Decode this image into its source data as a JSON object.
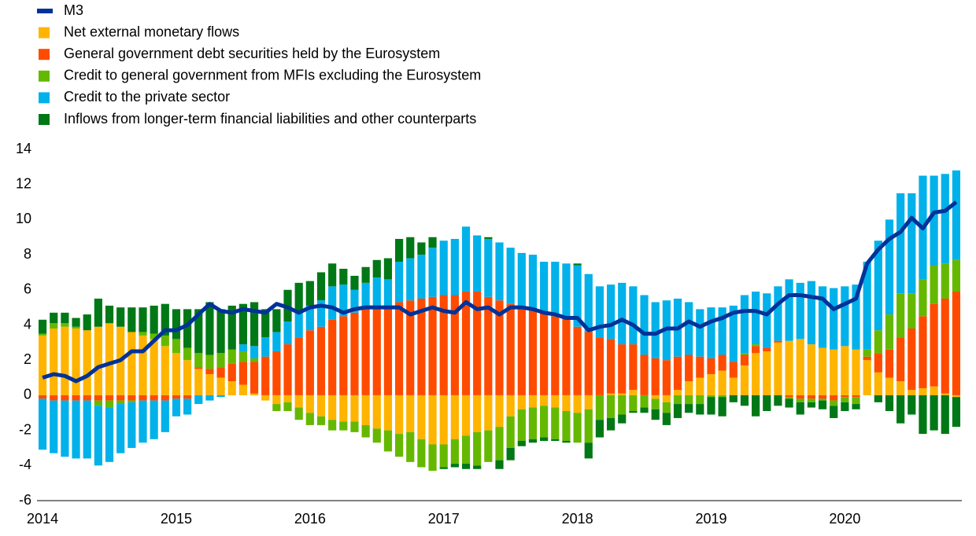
{
  "chart_data": {
    "type": "bar",
    "stacked": true,
    "categories": [
      "2014",
      null,
      null,
      null,
      null,
      null,
      null,
      null,
      null,
      null,
      null,
      null,
      "2015",
      null,
      null,
      null,
      null,
      null,
      null,
      null,
      null,
      null,
      null,
      null,
      "2016",
      null,
      null,
      null,
      null,
      null,
      null,
      null,
      null,
      null,
      null,
      null,
      "2017",
      null,
      null,
      null,
      null,
      null,
      null,
      null,
      null,
      null,
      null,
      null,
      "2018",
      null,
      null,
      null,
      null,
      null,
      null,
      null,
      null,
      null,
      null,
      null,
      "2019",
      null,
      null,
      null,
      null,
      null,
      null,
      null,
      null,
      null,
      null,
      null,
      "2020",
      null,
      null,
      null,
      null,
      null,
      null,
      null,
      null,
      null,
      null
    ],
    "ylim": [
      -6,
      14
    ],
    "yticks": [
      -6,
      -4,
      -2,
      0,
      2,
      4,
      6,
      8,
      10,
      12,
      14
    ],
    "grid": false,
    "legend": "top-left",
    "series": [
      {
        "name": "M3",
        "type": "line",
        "color": "#003299",
        "values": [
          1.0,
          1.2,
          1.1,
          0.8,
          1.1,
          1.6,
          1.8,
          2.0,
          2.5,
          2.5,
          3.1,
          3.7,
          3.7,
          4.0,
          4.6,
          5.2,
          4.8,
          4.7,
          4.9,
          4.8,
          4.7,
          5.2,
          5.0,
          4.7,
          5.0,
          5.1,
          5.0,
          4.7,
          4.9,
          5.0,
          5.0,
          5.0,
          5.0,
          4.6,
          4.8,
          5.0,
          4.8,
          4.7,
          5.3,
          4.9,
          5.0,
          4.6,
          5.0,
          5.0,
          4.9,
          4.7,
          4.6,
          4.4,
          4.4,
          3.7,
          3.9,
          4.0,
          4.3,
          4.0,
          3.5,
          3.5,
          3.8,
          3.8,
          4.2,
          3.9,
          4.2,
          4.4,
          4.7,
          4.8,
          4.8,
          4.6,
          5.2,
          5.7,
          5.7,
          5.6,
          5.5,
          4.9,
          5.2,
          5.5,
          7.5,
          8.3,
          8.9,
          9.3,
          10.1,
          9.5,
          10.4,
          10.5,
          11.0
        ]
      },
      {
        "name": "Net external monetary flows",
        "color": "#ffb400",
        "values": [
          3.4,
          3.8,
          3.9,
          3.8,
          3.7,
          3.9,
          4.1,
          3.9,
          3.6,
          3.4,
          3.2,
          2.8,
          2.4,
          2.0,
          1.5,
          1.2,
          1.0,
          0.8,
          0.6,
          0.1,
          -0.3,
          -0.5,
          -0.4,
          -0.7,
          -1.0,
          -1.2,
          -1.4,
          -1.5,
          -1.5,
          -1.7,
          -1.9,
          -2.0,
          -2.2,
          -2.1,
          -2.5,
          -2.8,
          -2.8,
          -2.5,
          -2.3,
          -2.1,
          -2.0,
          -1.8,
          -1.2,
          -0.8,
          -0.7,
          -0.6,
          -0.7,
          -0.9,
          -1.0,
          -0.8,
          0.0,
          0.1,
          0.1,
          0.3,
          0.0,
          -0.2,
          -0.4,
          0.3,
          0.8,
          1.0,
          1.2,
          1.4,
          1.0,
          1.7,
          2.4,
          2.5,
          3.0,
          3.1,
          3.2,
          2.9,
          2.7,
          2.6,
          2.8,
          2.6,
          2.0,
          1.3,
          1.0,
          0.8,
          0.3,
          0.4,
          0.5,
          0.1,
          -0.1
        ]
      },
      {
        "name": "General government debt securities held by the Eurosystem",
        "color": "#ff4b00",
        "values": [
          -0.2,
          -0.3,
          -0.3,
          -0.3,
          -0.3,
          -0.3,
          -0.3,
          -0.3,
          -0.3,
          -0.3,
          -0.3,
          -0.3,
          -0.2,
          -0.2,
          0.1,
          0.3,
          0.6,
          1.0,
          1.3,
          1.8,
          2.2,
          2.5,
          2.9,
          3.3,
          3.7,
          3.9,
          4.3,
          4.5,
          4.7,
          4.9,
          5.0,
          5.1,
          5.3,
          5.4,
          5.5,
          5.6,
          5.7,
          5.7,
          5.9,
          5.9,
          5.6,
          5.4,
          5.2,
          5.1,
          4.9,
          4.7,
          4.5,
          4.4,
          3.9,
          3.6,
          3.3,
          3.1,
          2.8,
          2.6,
          2.3,
          2.1,
          2.0,
          1.9,
          1.5,
          1.2,
          0.9,
          0.9,
          0.9,
          0.6,
          0.4,
          0.2,
          0.1,
          -0.1,
          -0.2,
          -0.2,
          -0.2,
          -0.3,
          -0.1,
          -0.1,
          0.2,
          1.1,
          1.6,
          2.5,
          3.5,
          4.1,
          4.7,
          5.4,
          5.9
        ]
      },
      {
        "name": "Credit to general government from MFIs excluding the Eurosystem",
        "color": "#65b800",
        "values": [
          0.1,
          0.3,
          0.2,
          0.1,
          0.0,
          -0.3,
          -0.4,
          -0.2,
          -0.1,
          0.2,
          0.3,
          0.6,
          0.8,
          0.7,
          0.8,
          0.8,
          0.8,
          0.8,
          0.6,
          0.2,
          0.0,
          -0.4,
          -0.5,
          -0.7,
          -0.7,
          -0.5,
          -0.6,
          -0.5,
          -0.6,
          -0.7,
          -0.8,
          -1.2,
          -1.3,
          -1.7,
          -1.6,
          -1.5,
          -1.3,
          -1.4,
          -1.6,
          -1.9,
          -1.8,
          -1.9,
          -1.8,
          -1.8,
          -1.8,
          -1.8,
          -1.8,
          -1.7,
          -1.7,
          -1.9,
          -1.4,
          -1.3,
          -1.1,
          -0.9,
          -0.7,
          -0.6,
          -0.6,
          -0.5,
          -0.5,
          -0.5,
          -0.1,
          -0.1,
          0.0,
          0.1,
          0.1,
          0.0,
          0.0,
          -0.1,
          -0.2,
          -0.2,
          -0.1,
          -0.3,
          -0.3,
          -0.4,
          0.4,
          1.3,
          2.0,
          2.5,
          2.0,
          2.1,
          2.2,
          2.0,
          1.8
        ]
      },
      {
        "name": "Credit to the private sector",
        "color": "#00b1ea",
        "values": [
          -2.9,
          -3.0,
          -3.2,
          -3.3,
          -3.3,
          -3.4,
          -3.1,
          -2.8,
          -2.6,
          -2.4,
          -2.2,
          -1.8,
          -1.0,
          -0.9,
          -0.5,
          -0.3,
          -0.1,
          0.0,
          0.4,
          0.7,
          1.1,
          1.1,
          1.3,
          1.4,
          1.4,
          1.5,
          1.9,
          1.8,
          1.3,
          1.5,
          1.7,
          1.5,
          2.3,
          2.4,
          2.5,
          2.8,
          3.1,
          3.2,
          3.7,
          3.2,
          3.3,
          3.3,
          3.2,
          3.0,
          3.1,
          2.9,
          3.1,
          3.1,
          3.5,
          3.3,
          2.9,
          3.1,
          3.5,
          3.3,
          3.4,
          3.2,
          3.4,
          3.3,
          3.0,
          2.7,
          2.9,
          2.7,
          3.2,
          3.3,
          3.0,
          3.1,
          3.1,
          3.5,
          3.2,
          3.6,
          3.5,
          3.5,
          3.4,
          3.7,
          5.0,
          5.1,
          5.4,
          5.7,
          5.7,
          5.9,
          5.1,
          5.1,
          5.1
        ]
      },
      {
        "name": "Inflows from longer-term financial liabilities and other counterparts",
        "color": "#007816",
        "values": [
          0.8,
          0.6,
          0.6,
          0.5,
          0.9,
          1.6,
          1.0,
          1.1,
          1.4,
          1.4,
          1.6,
          1.8,
          1.7,
          2.2,
          2.5,
          3.0,
          2.5,
          2.5,
          2.3,
          2.5,
          1.6,
          1.3,
          1.8,
          1.7,
          1.4,
          1.6,
          1.3,
          0.9,
          0.8,
          0.9,
          1.0,
          1.2,
          1.3,
          1.2,
          0.7,
          0.6,
          -0.1,
          -0.2,
          -0.3,
          -0.2,
          0.1,
          -0.5,
          -0.7,
          -0.3,
          -0.2,
          -0.2,
          -0.1,
          -0.1,
          0.1,
          -0.9,
          -1.0,
          -0.7,
          -0.5,
          -0.1,
          -0.3,
          -0.6,
          -0.7,
          -0.8,
          -0.5,
          -0.6,
          -1.0,
          -1.1,
          -0.4,
          -0.6,
          -1.2,
          -0.9,
          -0.6,
          -0.5,
          -0.7,
          -0.3,
          -0.5,
          -0.7,
          -0.5,
          -0.3,
          0.0,
          -0.4,
          -0.9,
          -1.6,
          -1.1,
          -2.2,
          -2.0,
          -2.2,
          -1.7
        ]
      }
    ]
  }
}
